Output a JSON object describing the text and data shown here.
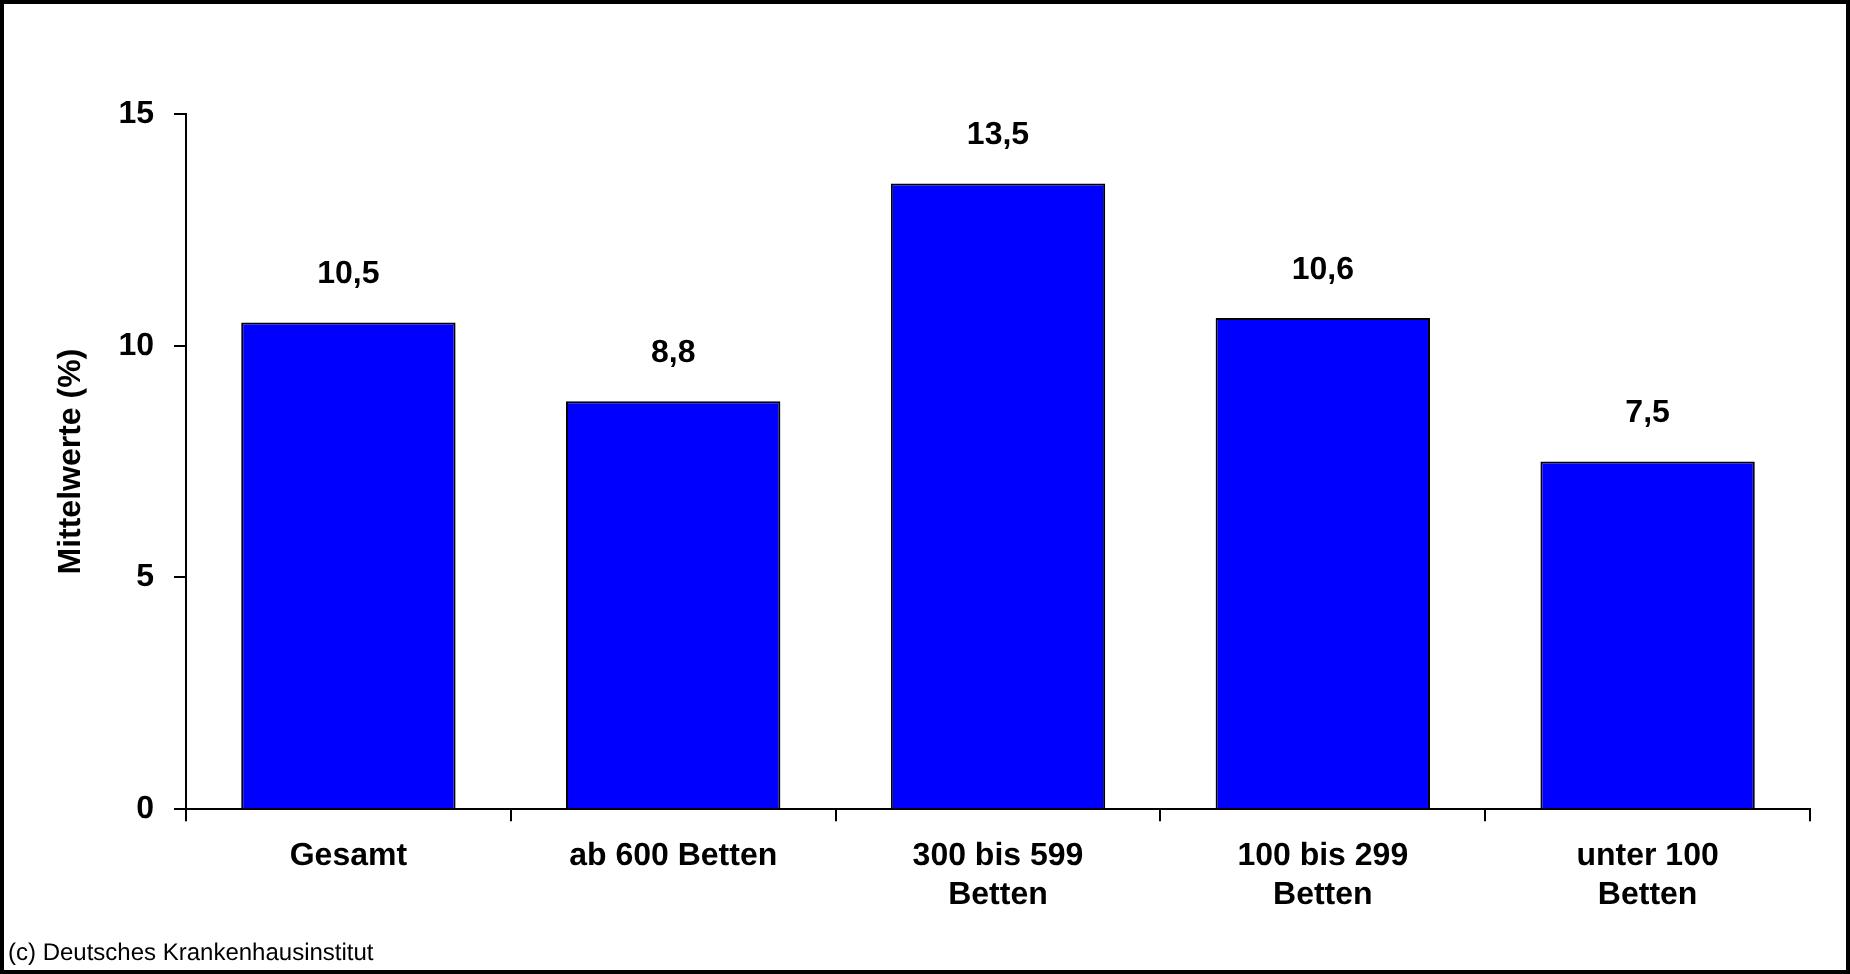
{
  "chart_data": {
    "type": "bar",
    "ylabel": "Mittelwerte (%)",
    "categories": [
      "Gesamt",
      "ab 600 Betten",
      "300 bis 599 Betten",
      "100 bis 299 Betten",
      "unter 100 Betten"
    ],
    "values": [
      10.5,
      8.8,
      13.5,
      10.6,
      7.5
    ],
    "color": "#0000ff",
    "value_labels": [
      "10,5",
      "8,8",
      "13,5",
      "10,6",
      "7,5"
    ],
    "ylim": [
      0,
      15
    ],
    "yticks": [
      0,
      5,
      10,
      15
    ],
    "grid": false,
    "legend": false,
    "annotations": [
      "(c) Deutsches Krankenhausinstitut"
    ]
  }
}
